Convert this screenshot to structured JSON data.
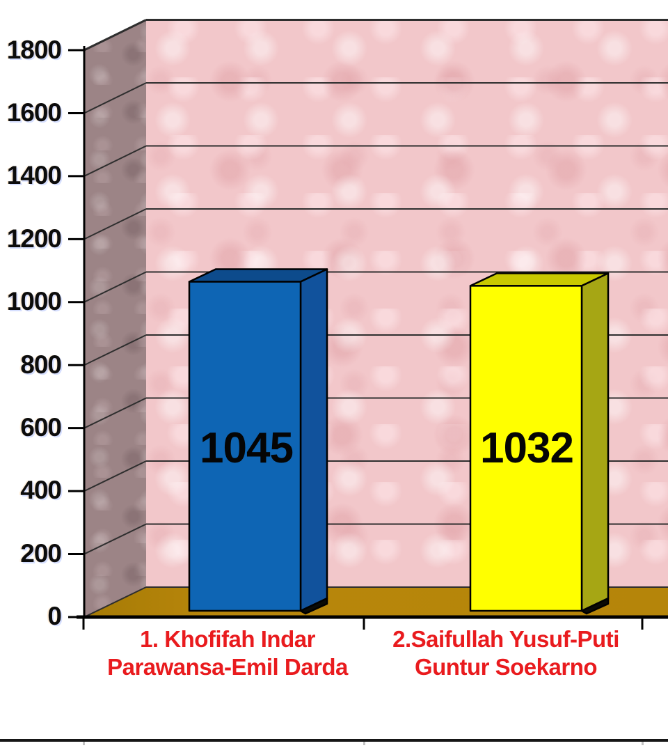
{
  "chart_data": {
    "type": "bar",
    "style": "3d-column",
    "title": "",
    "xlabel": "",
    "ylabel": "",
    "categories": [
      "1. Khofifah Indar Parawansa-Emil Darda",
      "2.Saifullah Yusuf-Puti Guntur Soekarno"
    ],
    "category_lines": [
      [
        "1. Khofifah Indar",
        "Parawansa-Emil Darda"
      ],
      [
        "2.Saifullah Yusuf-Puti",
        "Guntur Soekarno"
      ]
    ],
    "values": [
      1045,
      1032
    ],
    "data_labels": [
      "1045",
      "1032"
    ],
    "ylim": [
      0,
      1800
    ],
    "ytick_step": 200,
    "yticks": [
      0,
      200,
      400,
      600,
      800,
      1000,
      1200,
      1400,
      1600,
      1800
    ],
    "ytick_labels": [
      "0",
      "200",
      "400",
      "600",
      "800",
      "1000",
      "1200",
      "1400",
      "1600",
      "1800"
    ],
    "grid": true,
    "legend": false
  },
  "colors": {
    "back_wall": "#f2c7ca",
    "left_wall": "#9c8486",
    "floor": "#b8860b",
    "gridline": "#2e2e2e",
    "axis": "#000000",
    "category_label": "#e91b1e",
    "value_label": "#050505",
    "ytick_label": "#0c0c0c",
    "bars": [
      {
        "front": "#0e65b4",
        "top": "#0d4b8c",
        "side": "#11529c"
      },
      {
        "front": "#ffff00",
        "top": "#c9c900",
        "side": "#a6a614"
      }
    ]
  }
}
